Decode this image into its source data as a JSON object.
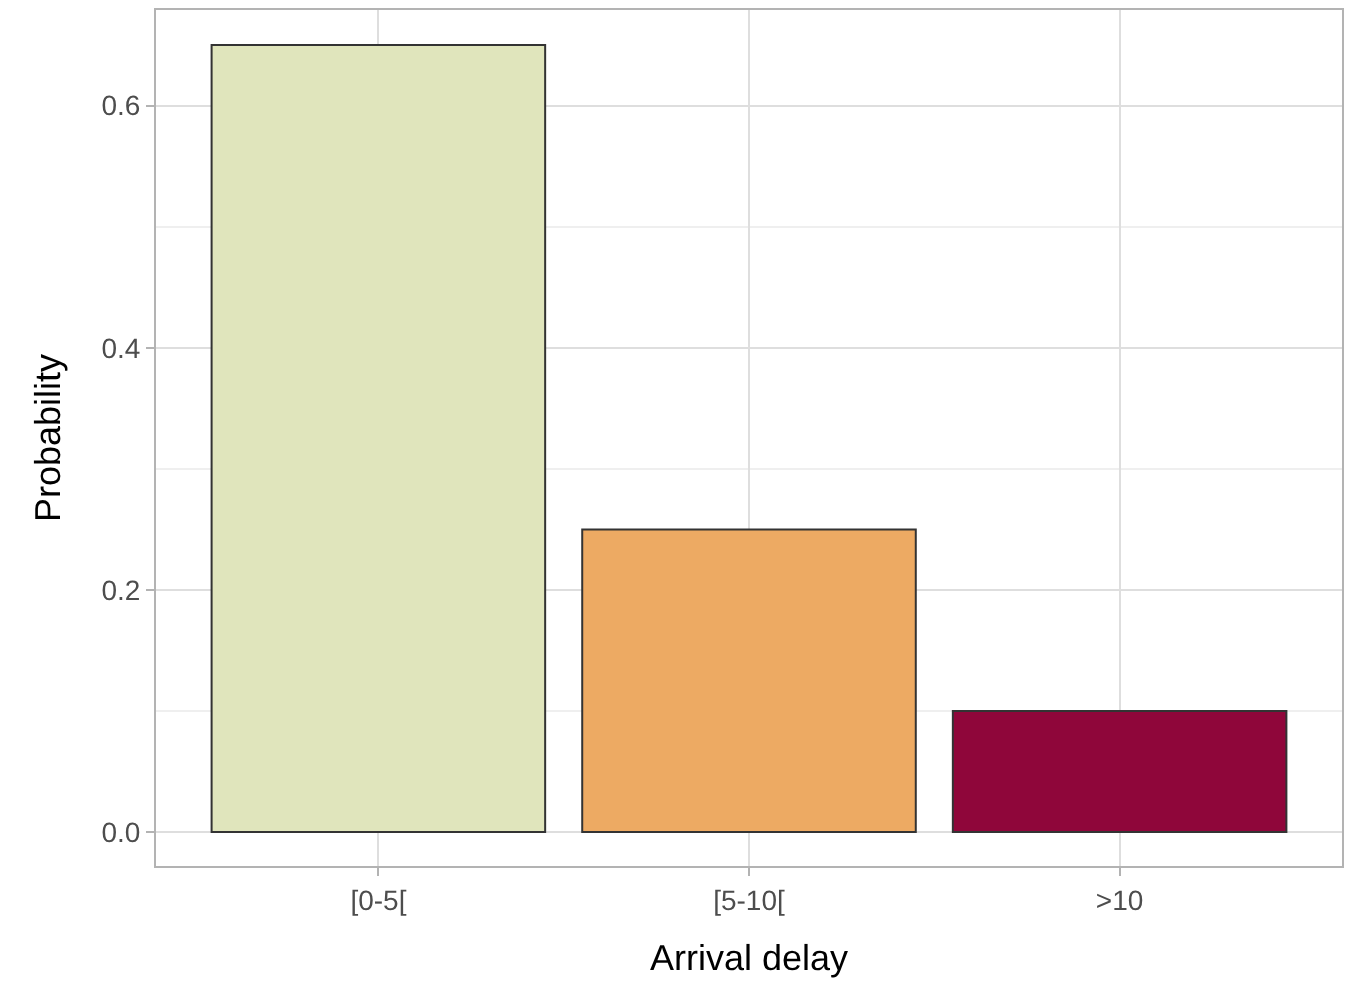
{
  "chart_data": {
    "type": "bar",
    "xlabel": "Arrival delay",
    "ylabel": "Probability",
    "categories": [
      "[0-5[",
      "[5-10[",
      ">10"
    ],
    "values": [
      0.65,
      0.25,
      0.1
    ],
    "colors": [
      "#e0e5bc",
      "#edaa63",
      "#8f063a"
    ],
    "ylim": [
      -0.028,
      0.679
    ],
    "yticks": [
      {
        "value": 0,
        "label": "0.0"
      },
      0.2,
      0.4,
      0.6
    ],
    "grid": true,
    "legend": false
  }
}
